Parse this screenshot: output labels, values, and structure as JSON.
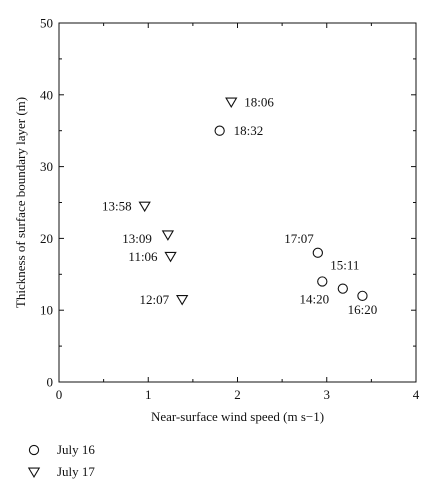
{
  "chart_data": {
    "type": "scatter",
    "xlabel": "Near-surface wind speed (m s−1)",
    "ylabel": "Thickness of surface boundary layer (m)",
    "xlim": [
      0,
      4
    ],
    "ylim": [
      0,
      50
    ],
    "xticks": [
      "0",
      "1",
      "2",
      "3",
      "4"
    ],
    "yticks": [
      "0",
      "10",
      "20",
      "30",
      "40",
      "50"
    ],
    "grid": false,
    "legend_placement": "below-left",
    "series": [
      {
        "name": "July 16",
        "marker": "circle",
        "points": [
          {
            "x": 1.8,
            "y": 35,
            "label": "18:32"
          },
          {
            "x": 2.9,
            "y": 18,
            "label": "17:07"
          },
          {
            "x": 2.95,
            "y": 14,
            "label": "14:20"
          },
          {
            "x": 3.18,
            "y": 13,
            "label": "15:11"
          },
          {
            "x": 3.4,
            "y": 12,
            "label": "16:20"
          }
        ]
      },
      {
        "name": "July 17",
        "marker": "triangle-down",
        "points": [
          {
            "x": 1.93,
            "y": 39,
            "label": "18:06"
          },
          {
            "x": 0.96,
            "y": 24.5,
            "label": "13:58"
          },
          {
            "x": 1.22,
            "y": 20.5,
            "label": "13:09"
          },
          {
            "x": 1.25,
            "y": 17.5,
            "label": "11:06"
          },
          {
            "x": 1.38,
            "y": 11.5,
            "label": "12:07"
          }
        ]
      }
    ]
  }
}
